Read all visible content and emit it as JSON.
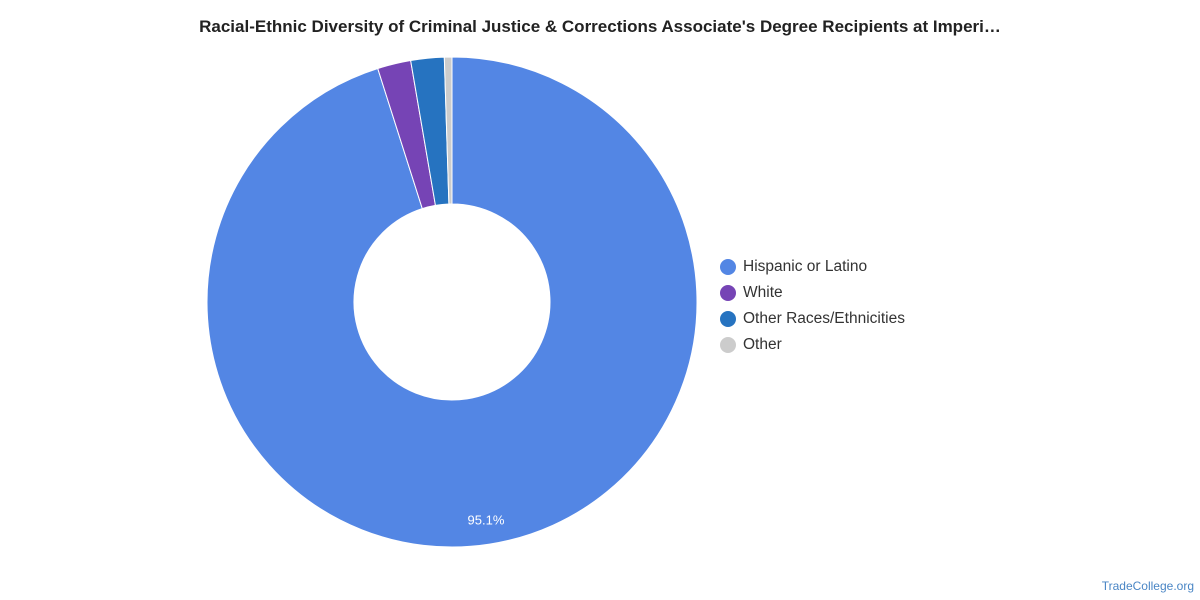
{
  "chart_data": {
    "type": "pie",
    "title": "Racial-Ethnic Diversity of Criminal Justice & Corrections Associate's Degree Recipients at Imperi…",
    "donut": true,
    "legend_position": "right",
    "slices": [
      {
        "name": "Hispanic or Latino",
        "value": 95.1,
        "label": "95.1%",
        "color": "#5386e4"
      },
      {
        "name": "White",
        "value": 2.2,
        "label": "",
        "color": "#7644b5"
      },
      {
        "name": "Other Races/Ethnicities",
        "value": 2.2,
        "label": "",
        "color": "#2673c0"
      },
      {
        "name": "Other",
        "value": 0.5,
        "label": "",
        "color": "#cccccc"
      }
    ]
  },
  "footer": {
    "source": "TradeCollege.org"
  }
}
